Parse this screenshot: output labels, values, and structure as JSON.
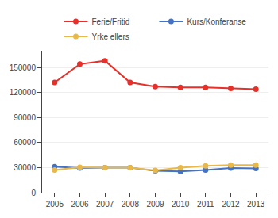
{
  "chart_data": {
    "type": "line",
    "x": [
      2005,
      2006,
      2007,
      2008,
      2009,
      2010,
      2011,
      2012,
      2013
    ],
    "xlim": [
      2004.5,
      2013.5
    ],
    "xticks": [
      2005,
      2006,
      2007,
      2008,
      2009,
      2010,
      2011,
      2012,
      2013
    ],
    "ylim": [
      0,
      170000
    ],
    "yticks": [
      0,
      30000,
      60000,
      90000,
      120000,
      150000
    ],
    "grid": true,
    "legend": "top",
    "marker": "circle",
    "line_style": "solid",
    "series": [
      {
        "name": "Ferie/Fritid",
        "color": "#e8302a",
        "values": [
          132000,
          154000,
          158000,
          132000,
          127000,
          126000,
          126000,
          125000,
          124000
        ]
      },
      {
        "name": "Kurs/Konferanse",
        "color": "#4472c4",
        "values": [
          31000,
          29500,
          30000,
          30000,
          26000,
          25500,
          27000,
          29500,
          29000
        ]
      },
      {
        "name": "Yrke ellers",
        "color": "#e8b84b",
        "values": [
          27000,
          30500,
          30000,
          30000,
          26500,
          30000,
          32000,
          33000,
          33000
        ]
      }
    ]
  }
}
